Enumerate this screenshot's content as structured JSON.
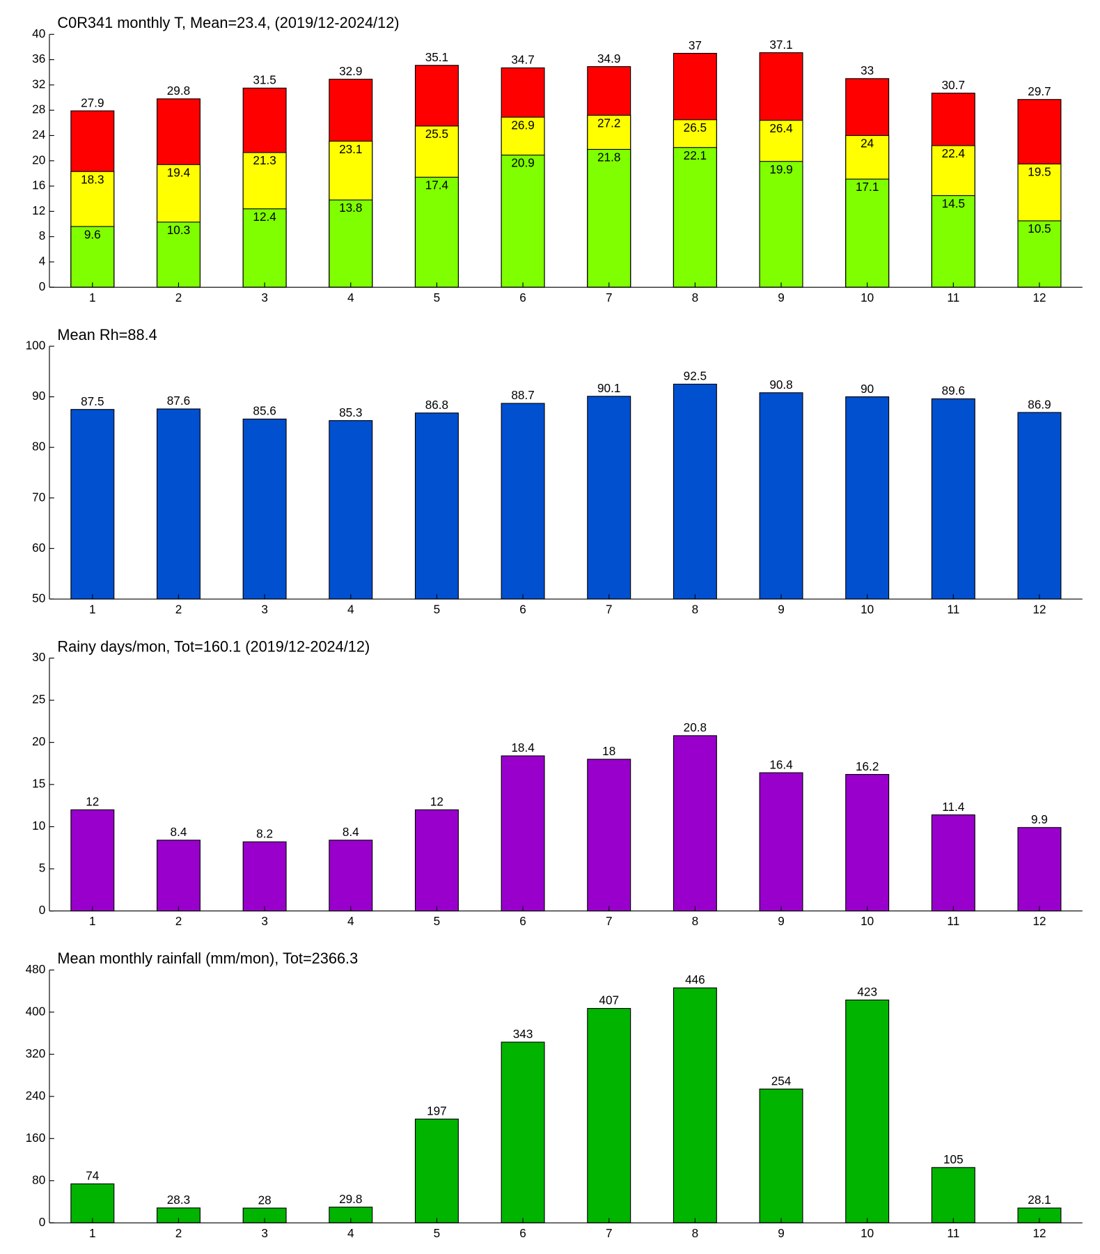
{
  "chart_data": [
    {
      "type": "bar",
      "title": "C0R341 monthly T, Mean=23.4, (2019/12-2024/12)",
      "categories": [
        1,
        2,
        3,
        4,
        5,
        6,
        7,
        8,
        9,
        10,
        11,
        12
      ],
      "xlim": [
        0.5,
        12.5
      ],
      "ylim": [
        0,
        40
      ],
      "yticks": [
        0,
        4,
        8,
        12,
        16,
        20,
        24,
        28,
        32,
        36,
        40
      ],
      "series": [
        {
          "color": "#ff0000",
          "values": [
            27.9,
            29.8,
            31.5,
            32.9,
            35.1,
            34.7,
            34.9,
            37,
            37.1,
            33,
            30.7,
            29.7
          ]
        },
        {
          "color": "#ffff00",
          "values": [
            18.3,
            19.4,
            21.3,
            23.1,
            25.5,
            26.9,
            27.2,
            26.5,
            26.4,
            24,
            22.4,
            19.5
          ]
        },
        {
          "color": "#80ff00",
          "values": [
            9.6,
            10.3,
            12.4,
            13.8,
            17.4,
            20.9,
            21.8,
            22.1,
            19.9,
            17.1,
            14.5,
            10.5
          ]
        }
      ]
    },
    {
      "type": "bar",
      "title": "Mean Rh=88.4",
      "categories": [
        1,
        2,
        3,
        4,
        5,
        6,
        7,
        8,
        9,
        10,
        11,
        12
      ],
      "xlim": [
        0.5,
        12.5
      ],
      "ylim": [
        50,
        100
      ],
      "yticks": [
        50,
        60,
        70,
        80,
        90,
        100
      ],
      "series": [
        {
          "color": "#0050d0",
          "values": [
            87.5,
            87.6,
            85.6,
            85.3,
            86.8,
            88.7,
            90.1,
            92.5,
            90.8,
            90,
            89.6,
            86.9
          ]
        }
      ]
    },
    {
      "type": "bar",
      "title": "Rainy days/mon, Tot=160.1 (2019/12-2024/12)",
      "categories": [
        1,
        2,
        3,
        4,
        5,
        6,
        7,
        8,
        9,
        10,
        11,
        12
      ],
      "xlim": [
        0.5,
        12.5
      ],
      "ylim": [
        0,
        30
      ],
      "yticks": [
        0,
        5,
        10,
        15,
        20,
        25,
        30
      ],
      "series": [
        {
          "color": "#9900cc",
          "values": [
            12,
            8.4,
            8.2,
            8.4,
            12,
            18.4,
            18,
            20.8,
            16.4,
            16.2,
            11.4,
            9.9
          ]
        }
      ]
    },
    {
      "type": "bar",
      "title": "Mean monthly rainfall (mm/mon), Tot=2366.3",
      "categories": [
        1,
        2,
        3,
        4,
        5,
        6,
        7,
        8,
        9,
        10,
        11,
        12
      ],
      "xlim": [
        0.5,
        12.5
      ],
      "ylim": [
        0,
        480
      ],
      "yticks": [
        0,
        80,
        160,
        240,
        320,
        400,
        480
      ],
      "series": [
        {
          "color": "#00b400",
          "values": [
            74,
            28.3,
            28,
            29.8,
            197,
            343,
            407,
            446,
            254,
            423,
            105,
            28.1
          ]
        }
      ]
    }
  ]
}
